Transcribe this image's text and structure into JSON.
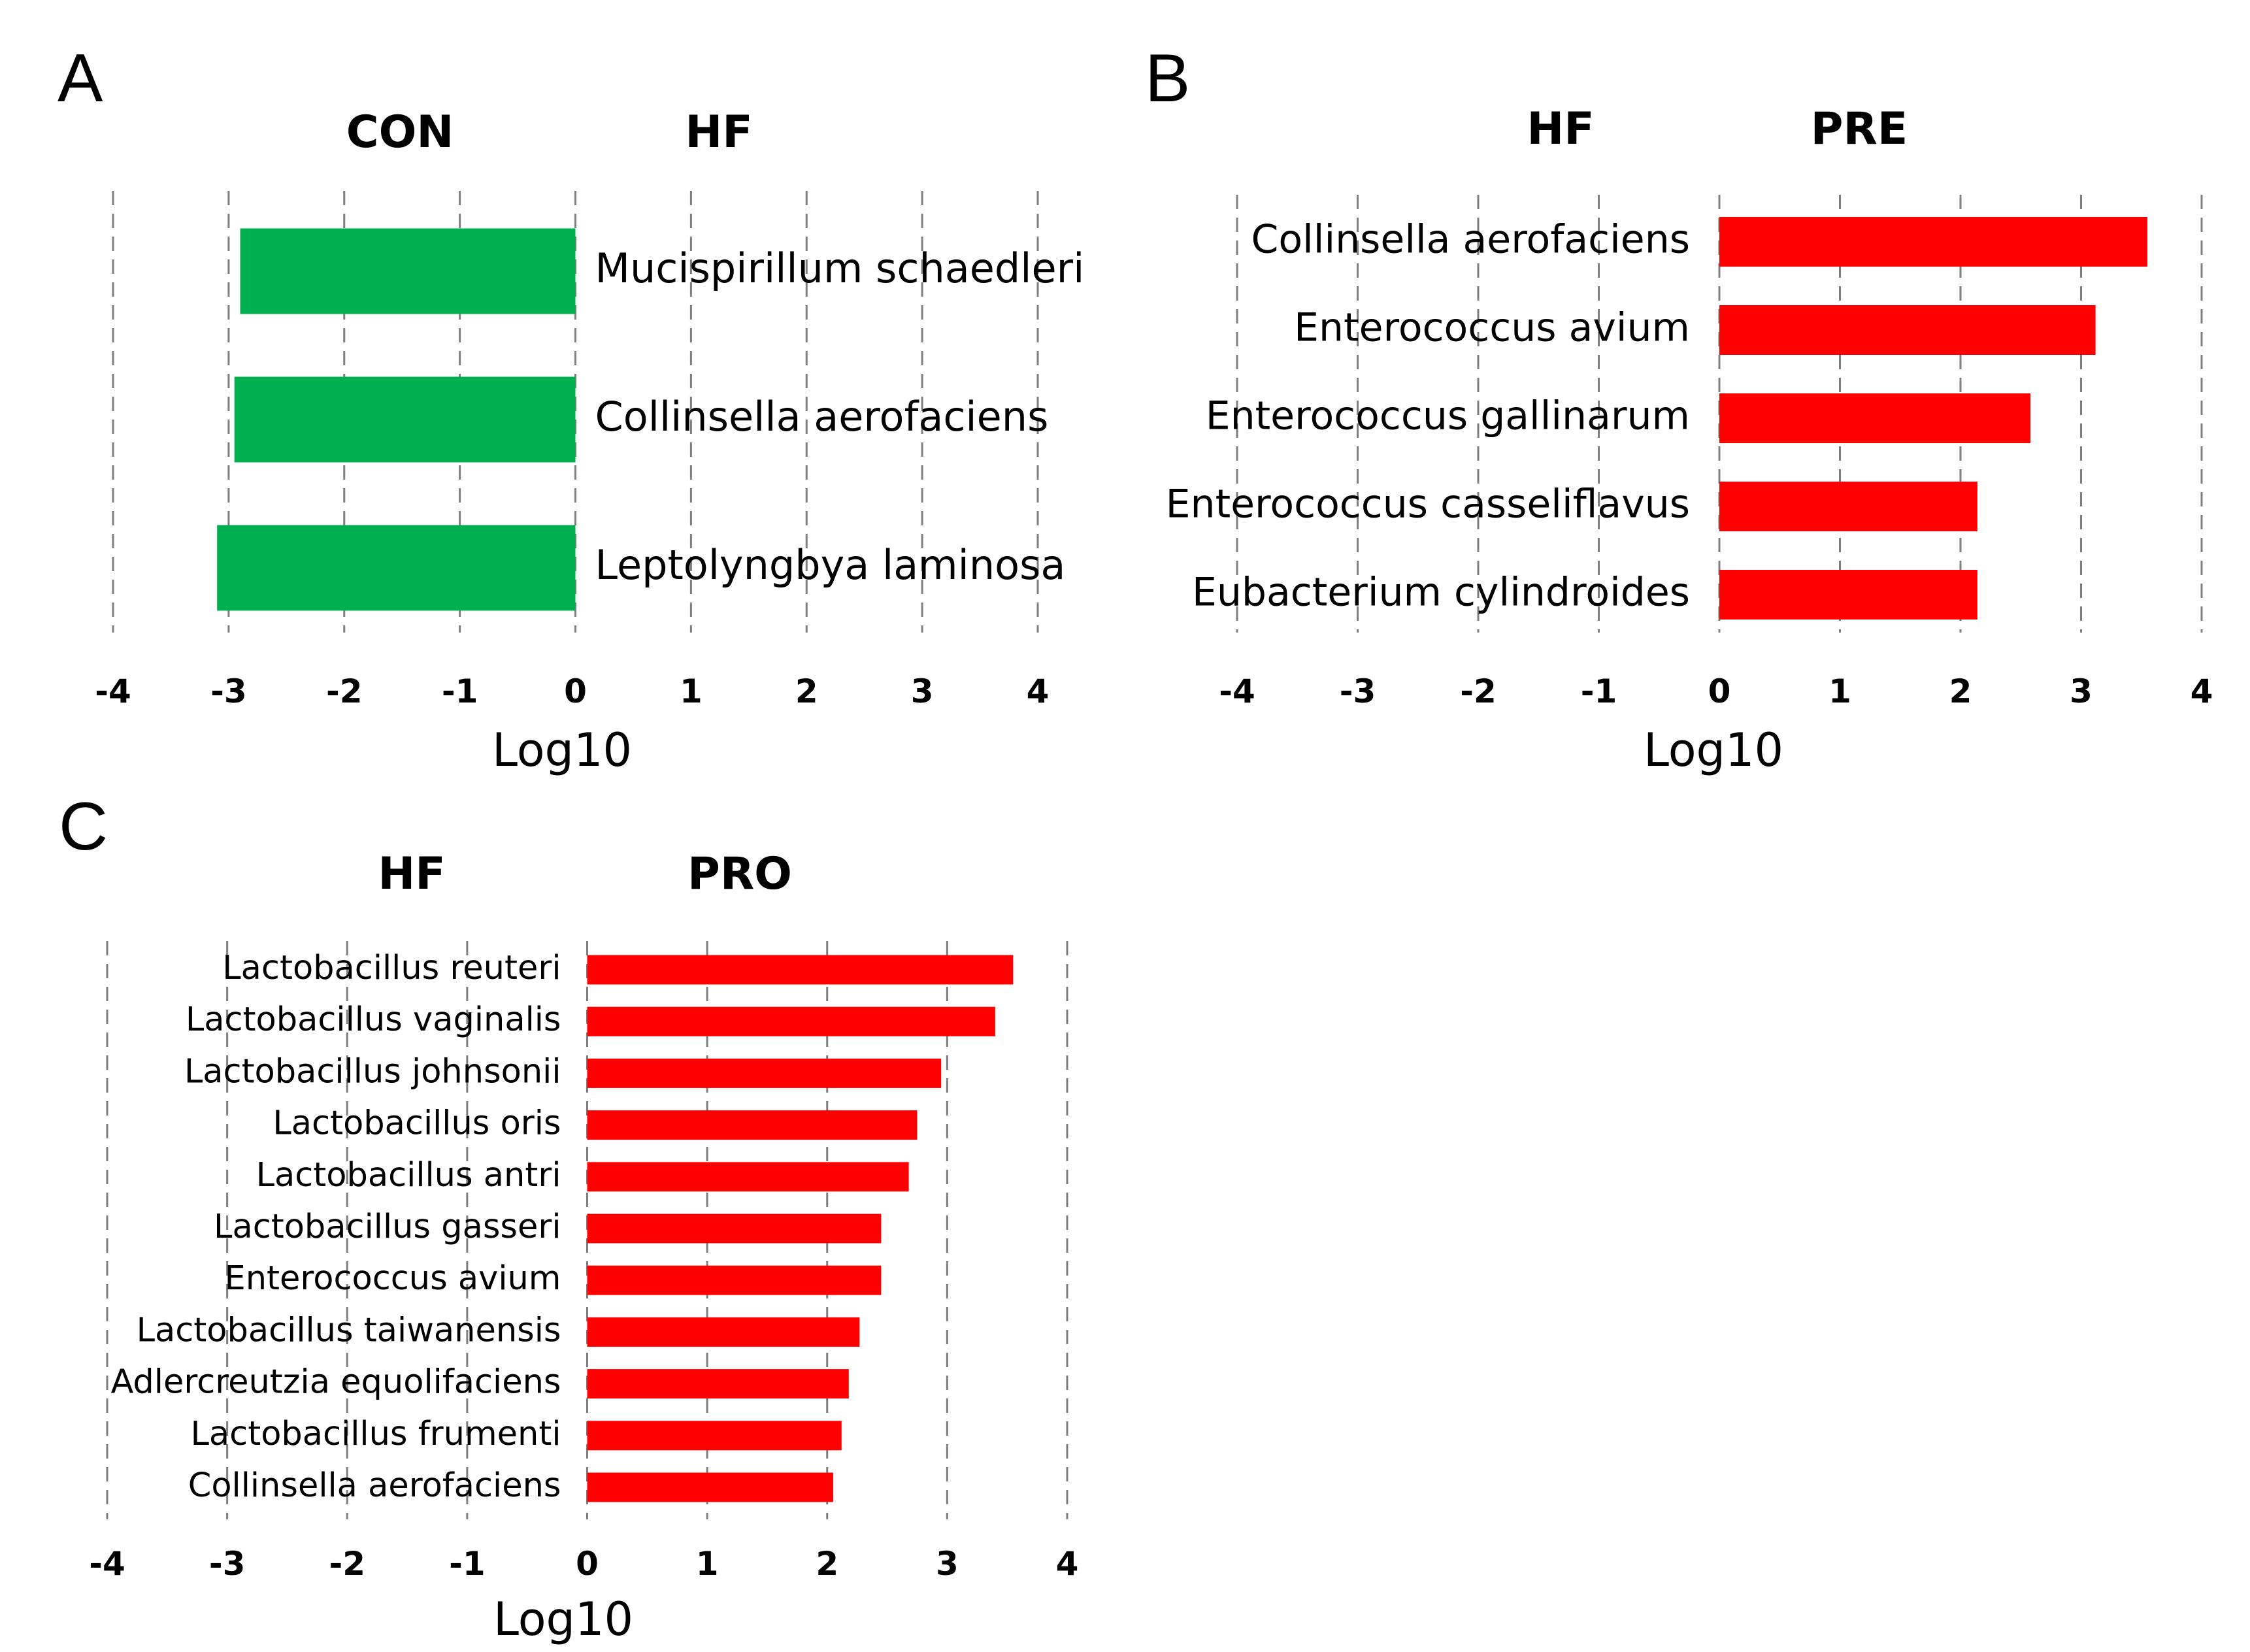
{
  "figure_title": "",
  "chart_data": [
    {
      "panel": "A",
      "type": "bar",
      "orientation": "horizontal",
      "group_labels": [
        "CON",
        "HF"
      ],
      "categories": [
        "Mucispirillum schaedleri",
        "Collinsella aerofaciens",
        "Leptolyngbya laminosa"
      ],
      "values": [
        -2.9,
        -2.95,
        -3.1
      ],
      "bar_color": "#00b050",
      "xlabel": "Log10",
      "xlim": [
        -4,
        4
      ],
      "xticks": [
        "-4",
        "-3",
        "-2",
        "-1",
        "0",
        "1",
        "2",
        "3",
        "4"
      ],
      "grid": true,
      "label_side": "right"
    },
    {
      "panel": "B",
      "type": "bar",
      "orientation": "horizontal",
      "group_labels": [
        "HF",
        "PRE"
      ],
      "categories": [
        "Collinsella aerofaciens",
        "Enterococcus avium",
        "Enterococcus gallinarum",
        "Enterococcus casseliflavus",
        "Eubacterium cylindroides"
      ],
      "values": [
        3.55,
        3.12,
        2.58,
        2.14,
        2.14
      ],
      "bar_color": "#ff0000",
      "xlabel": "Log10",
      "xlim": [
        -4,
        4
      ],
      "xticks": [
        "-4",
        "-3",
        "-2",
        "-1",
        "0",
        "1",
        "2",
        "3",
        "4"
      ],
      "grid": true,
      "label_side": "left"
    },
    {
      "panel": "C",
      "type": "bar",
      "orientation": "horizontal",
      "group_labels": [
        "HF",
        "PRO"
      ],
      "categories": [
        "Lactobacillus reuteri",
        "Lactobacillus vaginalis",
        "Lactobacillus johnsonii",
        "Lactobacillus oris",
        "Lactobacillus antri",
        "Lactobacillus gasseri",
        "Enterococcus avium",
        "Lactobacillus taiwanensis",
        "Adlercreutzia equolifaciens",
        "Lactobacillus frumenti",
        "Collinsella aerofaciens"
      ],
      "values": [
        3.55,
        3.4,
        2.95,
        2.75,
        2.68,
        2.45,
        2.45,
        2.27,
        2.18,
        2.12,
        2.05
      ],
      "bar_color": "#ff0000",
      "xlabel": "Log10",
      "xlim": [
        -4,
        4
      ],
      "xticks": [
        "-4",
        "-3",
        "-2",
        "-1",
        "0",
        "1",
        "2",
        "3",
        "4"
      ],
      "grid": true,
      "label_side": "left"
    }
  ]
}
